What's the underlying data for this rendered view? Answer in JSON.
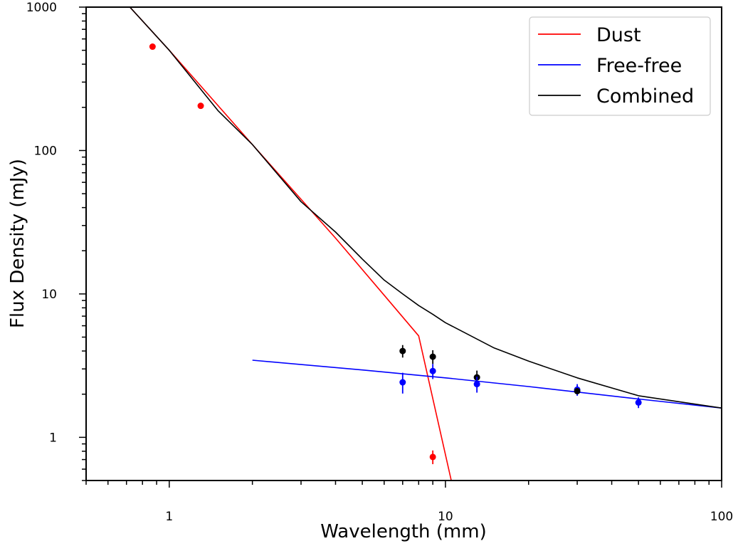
{
  "chart_data": {
    "type": "scatter",
    "title": "",
    "xlabel": "Wavelength (mm)",
    "ylabel": "Flux Density (mJy)",
    "xscale": "log",
    "yscale": "log",
    "xlim": [
      0.5,
      100
    ],
    "ylim": [
      0.5,
      1000
    ],
    "x_tick_labels": [
      {
        "value": 1,
        "label": "1"
      },
      {
        "value": 10,
        "label": "10"
      },
      {
        "value": 100,
        "label": "100"
      }
    ],
    "y_tick_labels": [
      {
        "value": 1,
        "label": "1"
      },
      {
        "value": 10,
        "label": "10"
      },
      {
        "value": 100,
        "label": "100"
      },
      {
        "value": 1000,
        "label": "1000"
      }
    ],
    "grid": false,
    "legend_position": "top-right",
    "series": [
      {
        "name": "Dust",
        "kind": "line",
        "color": "#ff0000",
        "x": [
          0.72,
          1.0,
          2.0,
          4.0,
          6.0,
          8.0,
          10.5
        ],
        "y": [
          1000,
          500,
          110,
          24.5,
          9.8,
          5.1,
          0.5
        ]
      },
      {
        "name": "Free-free",
        "kind": "line",
        "color": "#0000ff",
        "x": [
          2.0,
          5.0,
          10.0,
          20.0,
          50.0,
          100.0
        ],
        "y": [
          3.45,
          2.95,
          2.6,
          2.26,
          1.85,
          1.6
        ]
      },
      {
        "name": "Combined",
        "kind": "line",
        "color": "#000000",
        "x": [
          0.72,
          1.0,
          1.5,
          2.0,
          3.0,
          4.0,
          5.0,
          6.0,
          7.0,
          8.0,
          9.0,
          10.0,
          15.0,
          20.0,
          30.0,
          50.0,
          100.0
        ],
        "y": [
          1000,
          500,
          190,
          110,
          44,
          27,
          17.5,
          12.5,
          10.0,
          8.3,
          7.2,
          6.3,
          4.2,
          3.4,
          2.6,
          1.95,
          1.6
        ]
      }
    ],
    "points": [
      {
        "color": "#ff0000",
        "x": 0.87,
        "y": 530,
        "yerr": [
          0,
          0
        ]
      },
      {
        "color": "#ff0000",
        "x": 1.3,
        "y": 205,
        "yerr": [
          0,
          0
        ]
      },
      {
        "color": "#ff0000",
        "x": 9.0,
        "y": 0.73,
        "yerr": [
          0.08,
          0.08
        ]
      },
      {
        "color": "#000000",
        "x": 7.0,
        "y": 4.0,
        "yerr": [
          0.4,
          0.4
        ]
      },
      {
        "color": "#000000",
        "x": 9.0,
        "y": 3.65,
        "yerr": [
          0.4,
          0.4
        ]
      },
      {
        "color": "#000000",
        "x": 13.0,
        "y": 2.62,
        "yerr": [
          0.3,
          0.3
        ]
      },
      {
        "color": "#0000ff",
        "x": 7.0,
        "y": 2.42,
        "yerr": [
          0.4,
          0.4
        ]
      },
      {
        "color": "#0000ff",
        "x": 9.0,
        "y": 2.9,
        "yerr": [
          0.35,
          0.35
        ]
      },
      {
        "color": "#0000ff",
        "x": 13.0,
        "y": 2.35,
        "yerr": [
          0.3,
          0.3
        ]
      },
      {
        "color": "#0000ff",
        "x": 30.0,
        "y": 2.15,
        "yerr": [
          0.2,
          0.2
        ]
      },
      {
        "color": "#000000",
        "x": 30.0,
        "y": 2.1,
        "yerr": [
          0,
          0
        ]
      },
      {
        "color": "#0000ff",
        "x": 50.0,
        "y": 1.75,
        "yerr": [
          0.15,
          0.15
        ]
      }
    ]
  }
}
